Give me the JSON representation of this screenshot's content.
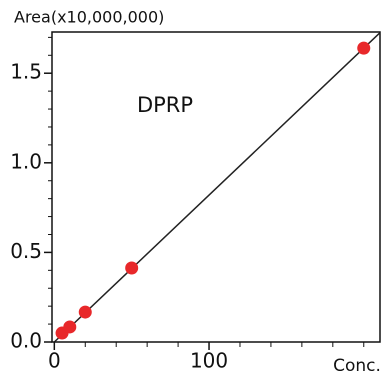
{
  "chart_data": {
    "type": "scatter",
    "y_axis_title": "Area(x10,000,000)",
    "x_axis_title": "Conc.",
    "annotation": "DPRP",
    "x": [
      5,
      10,
      20,
      50,
      200
    ],
    "values": [
      0.05,
      0.084,
      0.167,
      0.413,
      1.64
    ],
    "color": "#e8282a",
    "fit_line": {
      "x": [
        0,
        210.5
      ],
      "y": [
        0.0,
        1.726
      ],
      "color": "#222222"
    },
    "xlim": [
      -1.5,
      210.5
    ],
    "ylim": [
      0,
      1.73
    ],
    "xticks": [
      0,
      100
    ],
    "yticks": [
      {
        "value": 0,
        "label": "0.0"
      },
      0.5,
      {
        "value": 1,
        "label": "1.0"
      },
      1.5
    ],
    "xminorticks": [
      20,
      40,
      60,
      80,
      120,
      140,
      160,
      180,
      200
    ],
    "yminorticks": [
      0.1,
      0.2,
      0.3,
      0.4,
      0.6,
      0.7,
      0.8,
      0.9,
      1.1,
      1.2,
      1.3,
      1.4,
      1.6,
      1.7
    ],
    "grid": false
  }
}
